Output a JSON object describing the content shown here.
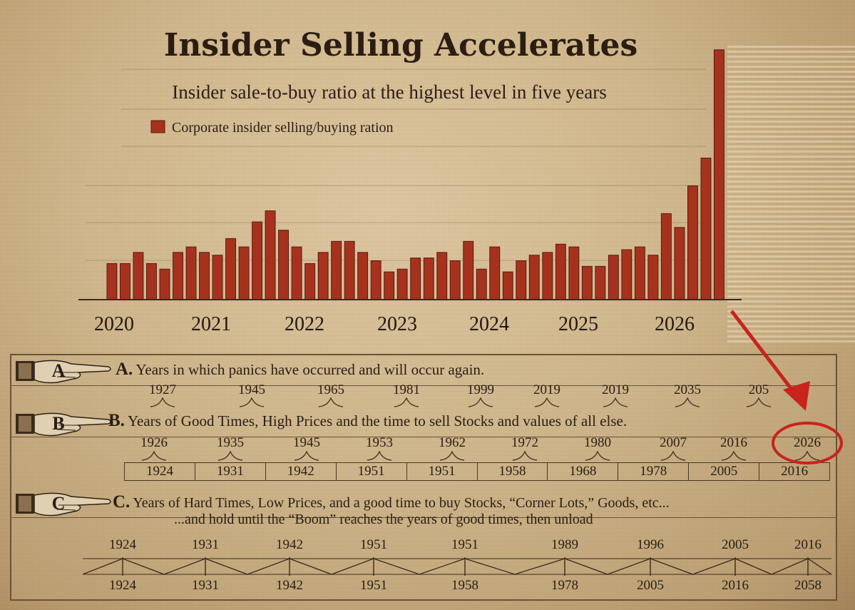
{
  "chart_data": {
    "type": "bar",
    "title": "Insider Selling Accelerates",
    "subtitle": "Insider sale-to-buy ratio at the highest level in five years",
    "legend": [
      "Corporate insider selling/buying ration"
    ],
    "x_ticks": [
      "2020",
      "2021",
      "2022",
      "2023",
      "2024",
      "2025",
      "2026"
    ],
    "values": [
      13,
      13,
      17,
      13,
      11,
      17,
      19,
      17,
      16,
      22,
      19,
      28,
      32,
      25,
      19,
      13,
      17,
      21,
      21,
      17,
      14,
      10,
      11,
      15,
      15,
      17,
      14,
      21,
      11,
      19,
      10,
      14,
      16,
      17,
      20,
      19,
      12,
      12,
      16,
      18,
      19,
      16,
      31,
      26,
      41,
      51,
      90
    ],
    "ylim": [
      0,
      92
    ],
    "color": "#a6321e"
  },
  "panel": {
    "rowA": {
      "letter": "A",
      "heading_letter": "A.",
      "heading": "Years in which panics have occurred and will occur again.",
      "years": [
        "1927",
        "1945",
        "1965",
        "1981",
        "1999",
        "2019",
        "2019",
        "2035",
        "205"
      ]
    },
    "rowB": {
      "letter": "B",
      "heading_letter": "B.",
      "heading": "Years of Good Times, High Prices and the time to sell Stocks and values of all else.",
      "top_years": [
        "1926",
        "1935",
        "1945",
        "1953",
        "1962",
        "1972",
        "1980",
        "2007",
        "2016",
        "2026"
      ],
      "box_years": [
        "1924",
        "1931",
        "1942",
        "1951",
        "1951",
        "1958",
        "1968",
        "1978",
        "2005",
        "2016"
      ]
    },
    "rowC": {
      "letter": "C",
      "heading_letter": "C.",
      "heading": "Years of Hard Times, Low Prices, and a good time to buy Stocks, “Corner Lots,” Goods, etc...",
      "heading2": "...and hold until the  “Boom” reaches the years of good times, then unload",
      "top_years": [
        "1924",
        "1931",
        "1942",
        "1951",
        "1951",
        "1989",
        "1996",
        "2005",
        "2016"
      ],
      "bottom_years": [
        "1924",
        "1931",
        "1942",
        "1951",
        "1958",
        "1978",
        "2005",
        "2016",
        "2058"
      ]
    }
  },
  "colors": {
    "bar": "#a6321e",
    "highlight": "#c8231c",
    "ink": "#2a1d12"
  }
}
